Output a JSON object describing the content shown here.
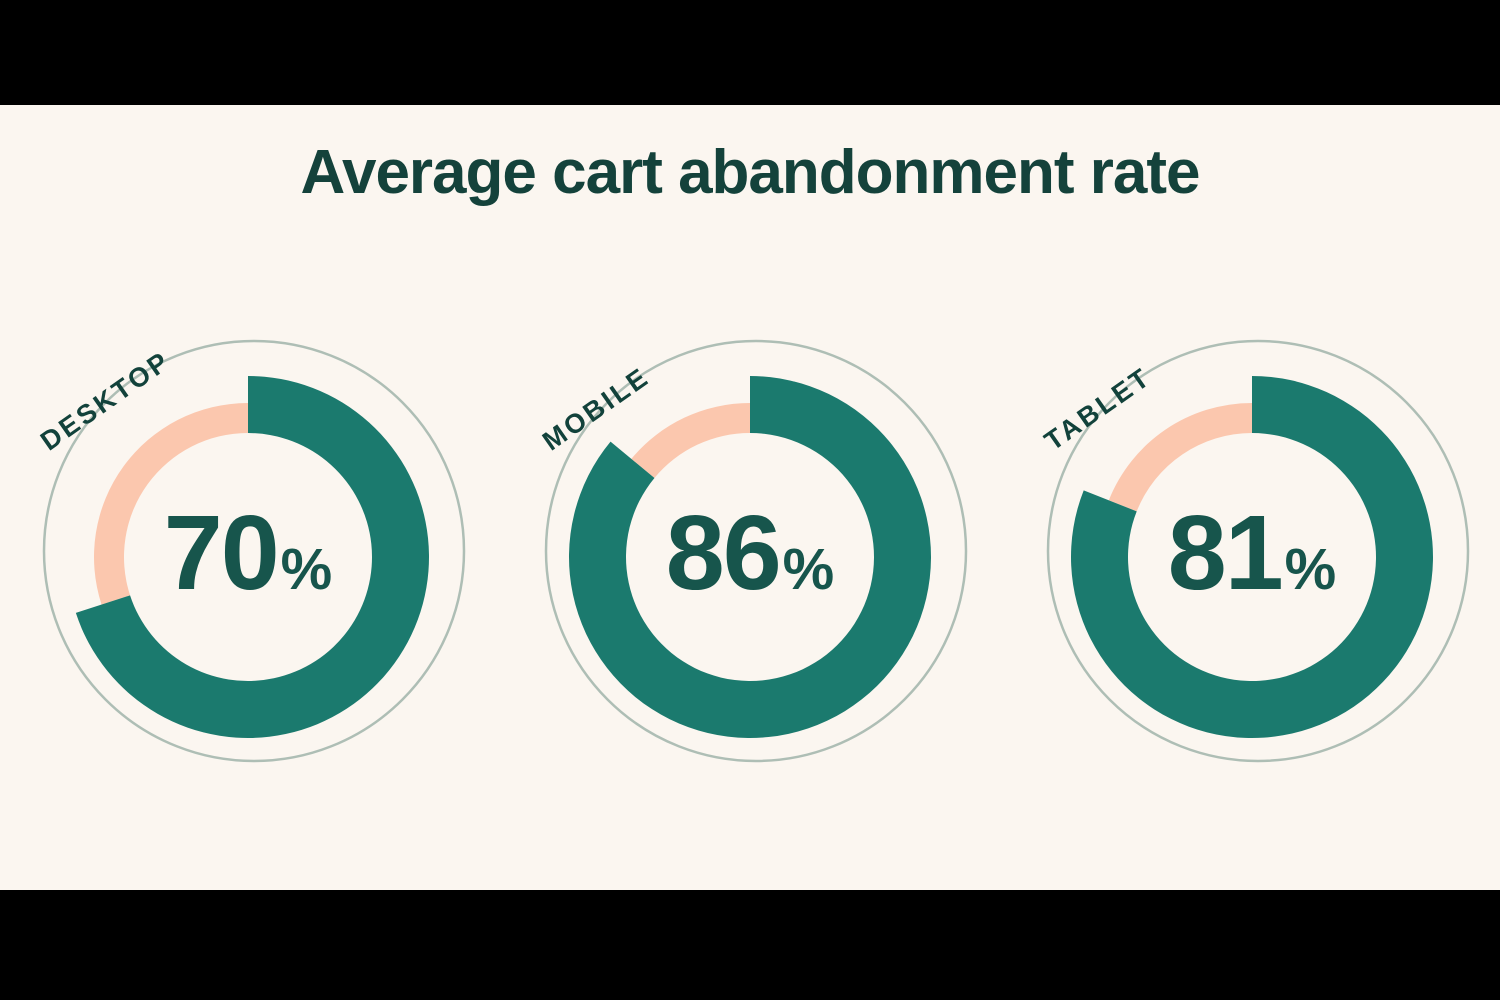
{
  "header": {
    "title": "Average cart abandonment rate"
  },
  "colors": {
    "background": "#FBF6F0",
    "letterbox": "#000000",
    "title_text": "#14423B",
    "label_text": "#12423B",
    "value_text": "#17554C",
    "filled_arc": "#1B7A6E",
    "remainder_arc": "#FBC7AE",
    "outline_ring": "#AEBEB5"
  },
  "chart_data": {
    "type": "pie",
    "subtype": "donut-gauge-group",
    "title": "Average cart abandonment rate",
    "unit": "%",
    "categories": [
      "DESKTOP",
      "MOBILE",
      "TABLET"
    ],
    "series": [
      {
        "label": "DESKTOP",
        "value": 70
      },
      {
        "label": "MOBILE",
        "value": 86
      },
      {
        "label": "TABLET",
        "value": 81
      }
    ],
    "value_range": [
      0,
      100
    ],
    "arc_start": "12 o'clock, clockwise",
    "legend_position": "rotated label at top-left of each donut",
    "filled_color": "#1B7A6E",
    "remainder_color": "#FBC7AE"
  }
}
